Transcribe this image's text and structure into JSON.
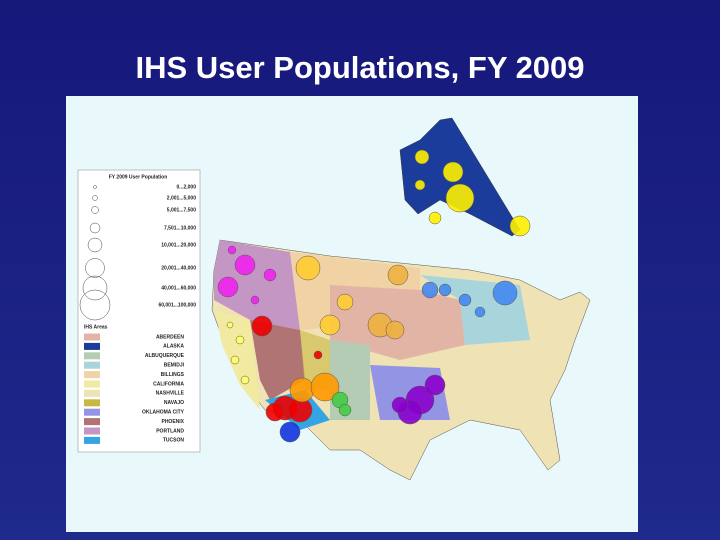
{
  "title": "IHS User Populations, FY 2009",
  "legend": {
    "size_title": "FY 2009 User Population",
    "size_classes": [
      "0...2,000",
      "2,001...5,000",
      "5,001...7,500",
      "7,501...10,000",
      "10,001...20,000",
      "20,001...40,000",
      "40,001...60,000",
      "60,001...100,000"
    ],
    "areas_title": "IHS Areas",
    "areas": [
      {
        "label": "ABERDEEN",
        "color": "#e2b4a6"
      },
      {
        "label": "ALASKA",
        "color": "#1c3c9c"
      },
      {
        "label": "ALBUQUERQUE",
        "color": "#b4ccb4"
      },
      {
        "label": "BEMIDJI",
        "color": "#a8d4dc"
      },
      {
        "label": "BILLINGS",
        "color": "#f0d2a4"
      },
      {
        "label": "CALIFORNIA",
        "color": "#f2eaa0"
      },
      {
        "label": "NASHVILLE",
        "color": "#efe2b4"
      },
      {
        "label": "NAVAJO",
        "color": "#c8b840"
      },
      {
        "label": "OKLAHOMA CITY",
        "color": "#9494e4"
      },
      {
        "label": "PHOENIX",
        "color": "#b07474"
      },
      {
        "label": "PORTLAND",
        "color": "#c496c4"
      },
      {
        "label": "TUCSON",
        "color": "#34a4e4"
      }
    ]
  }
}
